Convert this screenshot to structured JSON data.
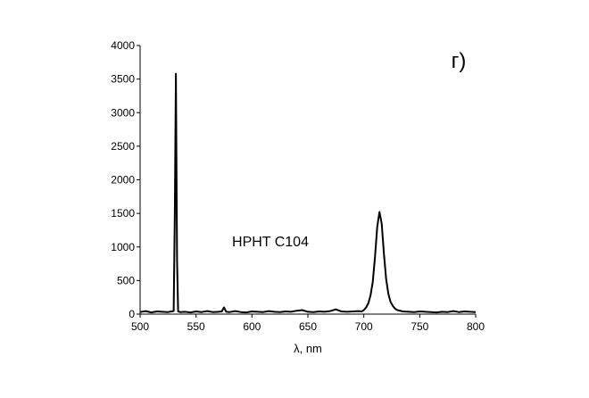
{
  "chart_data": {
    "type": "line",
    "x_label": "λ, nm",
    "annotations": [
      "HPHT C104",
      "г)"
    ],
    "color": "#000000",
    "x": [
      500,
      505,
      510,
      515,
      520,
      525,
      528,
      530,
      531,
      532,
      533,
      534,
      536,
      540,
      545,
      550,
      555,
      560,
      565,
      570,
      573,
      575,
      577,
      580,
      585,
      590,
      595,
      600,
      605,
      610,
      615,
      620,
      625,
      630,
      635,
      640,
      645,
      650,
      655,
      660,
      665,
      670,
      675,
      680,
      685,
      690,
      695,
      698,
      700,
      702,
      704,
      706,
      708,
      710,
      712,
      714,
      716,
      718,
      720,
      722,
      724,
      726,
      728,
      730,
      735,
      740,
      745,
      750,
      755,
      760,
      765,
      770,
      775,
      780,
      785,
      790,
      795,
      800
    ],
    "values": [
      30,
      45,
      25,
      40,
      35,
      30,
      40,
      45,
      1500,
      3580,
      800,
      40,
      30,
      35,
      25,
      40,
      30,
      45,
      30,
      35,
      40,
      100,
      35,
      30,
      45,
      30,
      25,
      40,
      35,
      30,
      45,
      35,
      30,
      40,
      35,
      50,
      60,
      35,
      30,
      40,
      35,
      45,
      70,
      40,
      35,
      40,
      45,
      40,
      60,
      100,
      160,
      280,
      480,
      850,
      1300,
      1520,
      1350,
      900,
      520,
      300,
      180,
      120,
      80,
      60,
      40,
      35,
      30,
      40,
      35,
      30,
      25,
      35,
      30,
      45,
      30,
      40,
      35,
      30
    ],
    "xlim": [
      500,
      800
    ],
    "ylim": [
      0,
      4000
    ],
    "xticks": [
      500,
      550,
      600,
      650,
      700,
      750,
      800
    ],
    "yticks": [
      0,
      500,
      1000,
      1500,
      2000,
      2500,
      3000,
      3500,
      4000
    ]
  }
}
